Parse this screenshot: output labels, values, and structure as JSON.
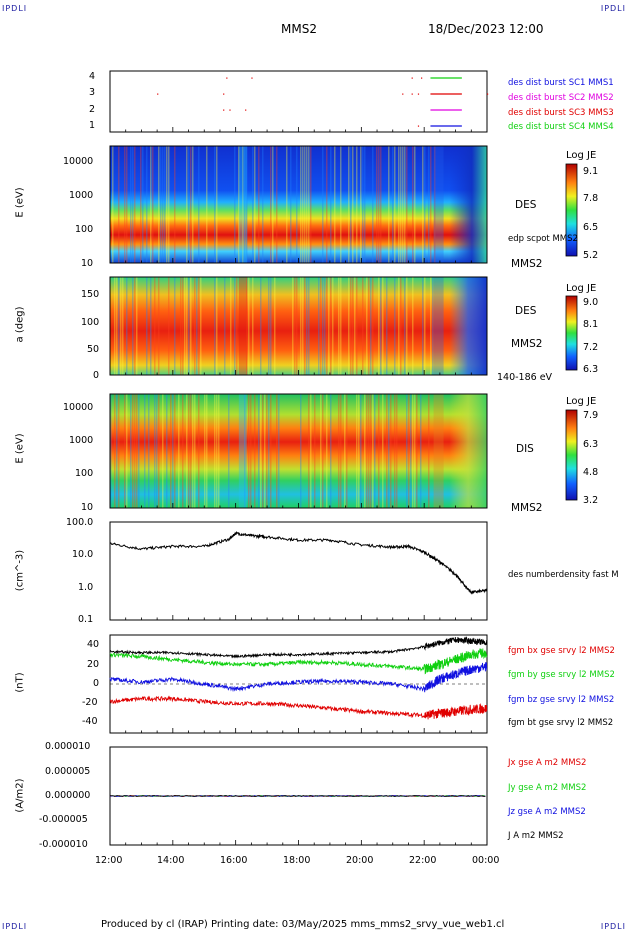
{
  "corner_labels": {
    "tl": "IPDLI",
    "tr": "IPDLI",
    "bl": "IPDLI",
    "br": "IPDLI"
  },
  "header": {
    "spacecraft": "MMS2",
    "datetime": "18/Dec/2023 12:00"
  },
  "footer": {
    "text": "Produced by cl (IRAP)   Printing date: 03/May/2025   mms_mms2_srvy_vue_web1.cl"
  },
  "colors": {
    "red": "#e00000",
    "green": "#10d010",
    "blue": "#1010e0",
    "black": "#000000",
    "magenta": "#e000e0"
  },
  "chart_data": [
    {
      "type": "scatter",
      "name": "burst-availability",
      "yticks": [
        "4",
        "3",
        "2",
        "1"
      ],
      "legend": [
        {
          "label": "des dist burst SC1 MMS1",
          "color": "#1010e0"
        },
        {
          "label": "des dist burst SC2 MMS2",
          "color": "#e000e0"
        },
        {
          "label": "des dist burst SC3 MMS3",
          "color": "#e00000"
        },
        {
          "label": "des dist burst SC4 MMS4",
          "color": "#10d010"
        }
      ],
      "intervals_hours_from_noon": [
        {
          "row": 4,
          "start": 10.2,
          "end": 11.2,
          "color": "#10d010"
        },
        {
          "row": 3,
          "start": 10.2,
          "end": 11.2,
          "color": "#e00000"
        },
        {
          "row": 2,
          "start": 10.2,
          "end": 11.2,
          "color": "#e000e0"
        },
        {
          "row": 1,
          "start": 10.2,
          "end": 11.2,
          "color": "#1010e0"
        }
      ]
    },
    {
      "type": "heatmap",
      "name": "des-energy-spectrogram",
      "ylabel": "E (eV)",
      "yticks": [
        "10000",
        "1000",
        "100",
        "10"
      ],
      "side_labels": [
        "DES",
        "edp scpot MMS2",
        "MMS2"
      ],
      "colorbar": {
        "title": "Log JE",
        "ticks": [
          "9.1",
          "7.8",
          "6.5",
          "5.2"
        ]
      }
    },
    {
      "type": "heatmap",
      "name": "des-pitch-angle",
      "ylabel": "a (deg)",
      "yticks": [
        "150",
        "100",
        "50",
        "0"
      ],
      "side_labels": [
        "DES",
        "MMS2",
        "140-186 eV"
      ],
      "colorbar": {
        "title": "Log JE",
        "ticks": [
          "9.0",
          "8.1",
          "7.2",
          "6.3"
        ]
      }
    },
    {
      "type": "heatmap",
      "name": "dis-energy-spectrogram",
      "ylabel": "E (eV)",
      "yticks": [
        "10000",
        "1000",
        "100",
        "10"
      ],
      "side_labels": [
        "DIS",
        "MMS2"
      ],
      "colorbar": {
        "title": "Log JE",
        "ticks": [
          "7.9",
          "6.3",
          "4.8",
          "3.2"
        ]
      }
    },
    {
      "type": "line",
      "name": "number-density",
      "ylabel": "(cm^-3)",
      "yticks": [
        "100.0",
        "10.0",
        "1.0",
        "0.1"
      ],
      "legend": [
        {
          "label": "des numberdensity fast M",
          "color": "#000000"
        }
      ],
      "x_hours_from_noon": [
        0,
        1,
        2,
        3,
        3.8,
        4,
        4.5,
        5,
        6,
        7,
        8,
        9,
        9.5,
        10,
        10.5,
        11,
        11.3,
        11.5,
        12
      ],
      "y": [
        22,
        15,
        18,
        18,
        30,
        45,
        38,
        35,
        28,
        28,
        20,
        17,
        18,
        12,
        6,
        2.5,
        1.1,
        0.7,
        0.8
      ]
    },
    {
      "type": "line",
      "name": "magnetic-field",
      "ylabel": "(nT)",
      "yticks": [
        "40",
        "20",
        "0",
        "-20",
        "-40"
      ],
      "ylim": [
        -50,
        50
      ],
      "legend": [
        {
          "label": "fgm bx gse srvy l2 MMS2",
          "color": "#e00000"
        },
        {
          "label": "fgm by gse srvy l2 MMS2",
          "color": "#10d010"
        },
        {
          "label": "fgm bz gse srvy l2 MMS2",
          "color": "#1010e0"
        },
        {
          "label": "fgm bt gse srvy l2 MMS2",
          "color": "#000000"
        }
      ],
      "series": [
        {
          "x_hours_from_noon": [
            0,
            1,
            2,
            3,
            4,
            5,
            6,
            7,
            8,
            9,
            10,
            10.5,
            11,
            11.5,
            12
          ],
          "values": [
            -18,
            -15,
            -15,
            -18,
            -20,
            -20,
            -22,
            -25,
            -28,
            -30,
            -32,
            -30,
            -28,
            -26,
            -25
          ]
        },
        {
          "x_hours_from_noon": [
            0,
            1,
            2,
            3,
            4,
            5,
            6,
            7,
            8,
            9,
            10,
            10.5,
            11,
            11.5,
            12
          ],
          "values": [
            30,
            28,
            25,
            22,
            20,
            20,
            22,
            22,
            20,
            18,
            15,
            20,
            25,
            30,
            32
          ]
        },
        {
          "x_hours_from_noon": [
            0,
            1,
            2,
            3,
            4,
            5,
            6,
            7,
            8,
            9,
            10,
            10.5,
            11,
            11.5,
            12
          ],
          "values": [
            5,
            2,
            5,
            0,
            -5,
            0,
            2,
            3,
            2,
            0,
            -5,
            5,
            10,
            15,
            18
          ]
        },
        {
          "x_hours_from_noon": [
            0,
            1,
            2,
            3,
            4,
            5,
            6,
            7,
            8,
            9,
            10,
            10.5,
            11,
            11.5,
            12
          ],
          "values": [
            33,
            32,
            32,
            30,
            28,
            30,
            30,
            31,
            32,
            33,
            38,
            42,
            45,
            44,
            42
          ]
        }
      ]
    },
    {
      "type": "line",
      "name": "current-density",
      "ylabel": "(A/m2)",
      "yticks": [
        "0.000010",
        "0.000005",
        "0.000000",
        "-0.000005",
        "-0.000010"
      ],
      "legend": [
        {
          "label": "Jx gse A m2 MMS2",
          "color": "#e00000"
        },
        {
          "label": "Jy gse A m2 MMS2",
          "color": "#10d010"
        },
        {
          "label": "Jz gse A m2 MMS2",
          "color": "#1010e0"
        },
        {
          "label": "J A m2 MMS2",
          "color": "#000000"
        }
      ],
      "xticks": [
        "12:00",
        "14:00",
        "16:00",
        "18:00",
        "20:00",
        "22:00",
        "00:00"
      ]
    }
  ]
}
